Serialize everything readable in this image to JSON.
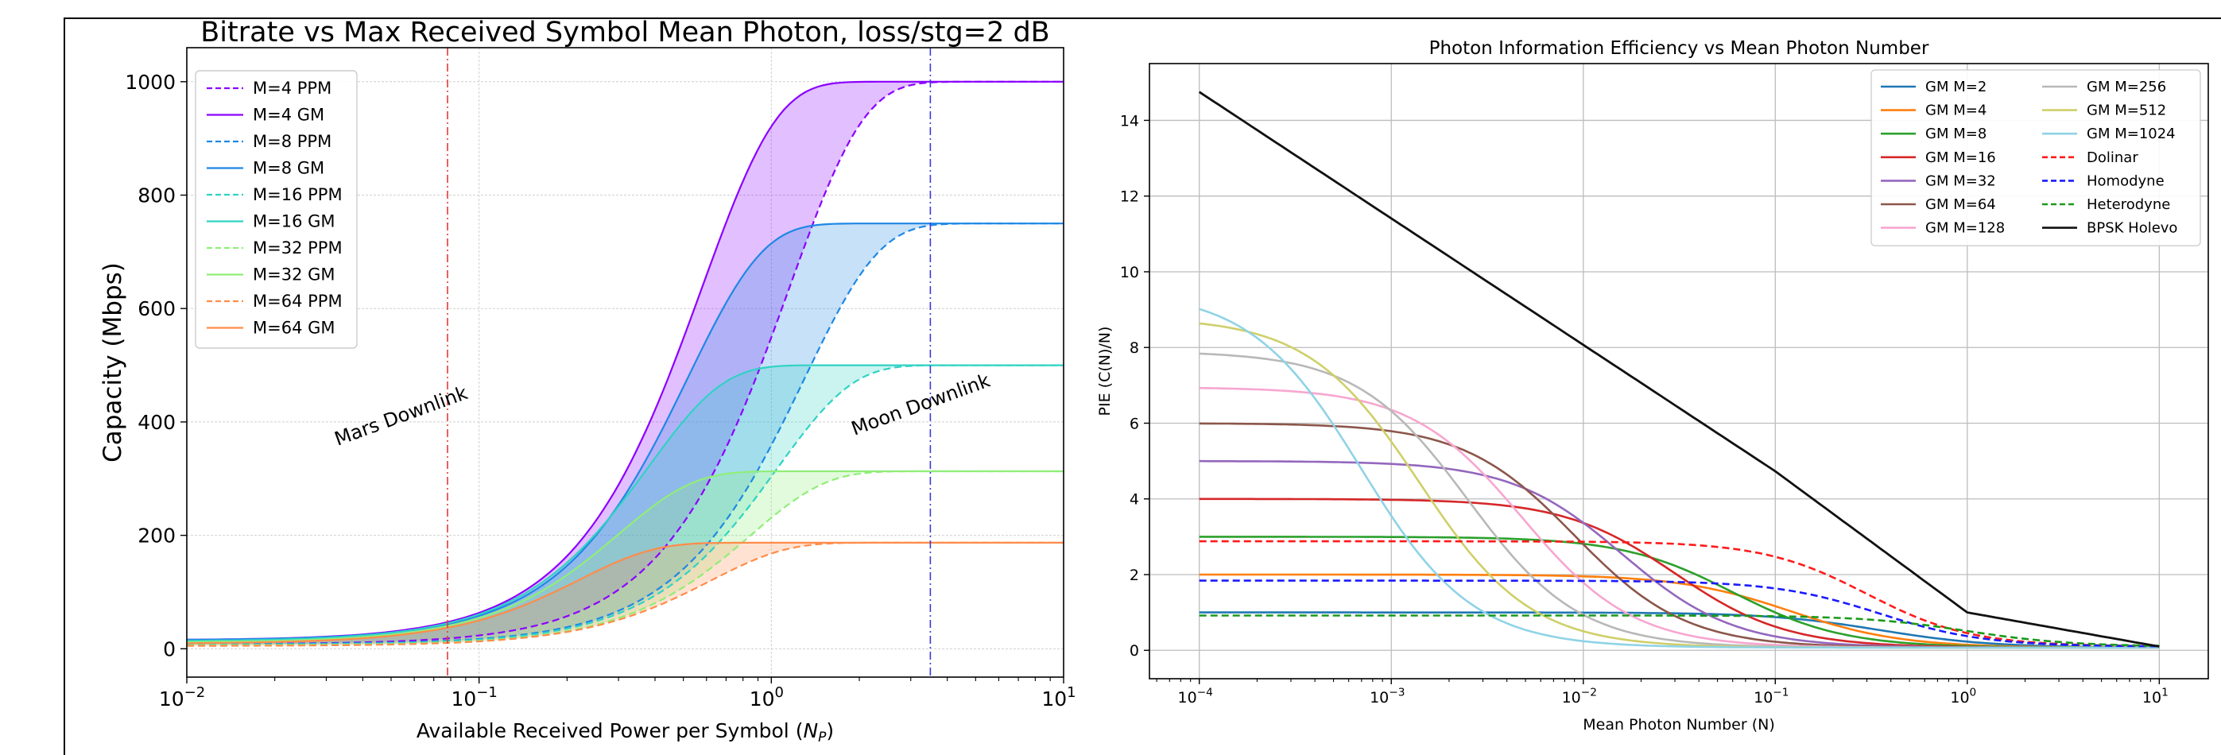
{
  "chart_data": [
    {
      "type": "line",
      "title": "Bitrate vs Max Received Symbol Mean Photon, loss/stg=2 dB",
      "xlabel": "Available Received Power per Symbol (",
      "xlabel_var": "N",
      "xlabel_sub": "P",
      "xlabel_close": ")",
      "ylabel": "Capacity (Mbps)",
      "xscale": "log",
      "xlim": [
        0.01,
        10
      ],
      "ylim": [
        -50,
        1060
      ],
      "grid": true,
      "legend_position": "upper-left",
      "x_ticks": [
        {
          "value": 0.01,
          "base": "10",
          "exp": "−2"
        },
        {
          "value": 0.1,
          "base": "10",
          "exp": "−1"
        },
        {
          "value": 1,
          "base": "10",
          "exp": "0"
        },
        {
          "value": 10,
          "base": "10",
          "exp": "1"
        }
      ],
      "y_ticks": [
        0,
        200,
        400,
        600,
        800,
        1000
      ],
      "y_tick_labels": [
        "0",
        "200",
        "400",
        "600",
        "800",
        "1000"
      ],
      "series": [
        {
          "name": "M=4 PPM",
          "M": 4,
          "scheme": "PPM",
          "style": "dashed",
          "color": "#8b00ff",
          "ymax": 1000,
          "half": 1.15,
          "floor": 8
        },
        {
          "name": "M=4 GM",
          "M": 4,
          "scheme": "GM",
          "style": "solid",
          "color": "#8b00ff",
          "ymax": 1000,
          "half": 0.58,
          "floor": 15
        },
        {
          "name": "M=8 PPM",
          "M": 8,
          "scheme": "PPM",
          "style": "dashed",
          "color": "#1e88e5",
          "ymax": 750,
          "half": 1.3,
          "floor": 8
        },
        {
          "name": "M=8 GM",
          "M": 8,
          "scheme": "GM",
          "style": "solid",
          "color": "#1e88e5",
          "ymax": 750,
          "half": 0.52,
          "floor": 15
        },
        {
          "name": "M=16 PPM",
          "M": 16,
          "scheme": "PPM",
          "style": "dashed",
          "color": "#2fd3c4",
          "ymax": 500,
          "half": 1.05,
          "floor": 7
        },
        {
          "name": "M=16 GM",
          "M": 16,
          "scheme": "GM",
          "style": "solid",
          "color": "#2fd3c4",
          "ymax": 500,
          "half": 0.38,
          "floor": 13
        },
        {
          "name": "M=32 PPM",
          "M": 32,
          "scheme": "PPM",
          "style": "dashed",
          "color": "#90ee78",
          "ymax": 313,
          "half": 0.85,
          "floor": 6
        },
        {
          "name": "M=32 GM",
          "M": 32,
          "scheme": "GM",
          "style": "solid",
          "color": "#90ee78",
          "ymax": 313,
          "half": 0.3,
          "floor": 11
        },
        {
          "name": "M=64 PPM",
          "M": 64,
          "scheme": "PPM",
          "style": "dashed",
          "color": "#ff8c4a",
          "ymax": 187,
          "half": 0.62,
          "floor": 5
        },
        {
          "name": "M=64 GM",
          "M": 64,
          "scheme": "GM",
          "style": "solid",
          "color": "#ff8c4a",
          "ymax": 187,
          "half": 0.22,
          "floor": 9
        }
      ],
      "vlines": [
        {
          "label": "Mars Downlink",
          "x": 0.078,
          "color": "#e53935",
          "style": "dashdot"
        },
        {
          "label": "Moon Downlink",
          "x": 3.5,
          "color": "#3a3ad6",
          "style": "dashdot"
        }
      ],
      "annotations": [
        {
          "text": "Mars Downlink",
          "x": 0.055,
          "y": 400,
          "rotation": -20
        },
        {
          "text": "Moon Downlink",
          "x": 3.3,
          "y": 420,
          "rotation": -20
        }
      ]
    },
    {
      "type": "line",
      "title": "Photon Information Efficiency vs Mean Photon Number",
      "xlabel": "Mean Photon Number (N)",
      "ylabel": "PIE (C(N)/N)",
      "xscale": "log",
      "xlim": [
        5.5e-05,
        18
      ],
      "ylim": [
        -0.75,
        15.5
      ],
      "grid": true,
      "legend_position": "upper-right",
      "x_ticks": [
        {
          "value": 0.0001,
          "base": "10",
          "exp": "−4"
        },
        {
          "value": 0.001,
          "base": "10",
          "exp": "−3"
        },
        {
          "value": 0.01,
          "base": "10",
          "exp": "−2"
        },
        {
          "value": 0.1,
          "base": "10",
          "exp": "−1"
        },
        {
          "value": 1,
          "base": "10",
          "exp": "0"
        },
        {
          "value": 10,
          "base": "10",
          "exp": "1"
        }
      ],
      "y_ticks": [
        0,
        2,
        4,
        6,
        8,
        10,
        12,
        14
      ],
      "y_tick_labels": [
        "0",
        "2",
        "4",
        "6",
        "8",
        "10",
        "12",
        "14"
      ],
      "x_start": 0.0001,
      "x_end": 10,
      "series": [
        {
          "name": "GM M=2",
          "kind": "gm",
          "color": "#1f77b4",
          "style": "solid",
          "plateau": 1.0,
          "knee": 0.35
        },
        {
          "name": "GM M=4",
          "kind": "gm",
          "color": "#ff7f0e",
          "style": "solid",
          "plateau": 2.0,
          "knee": 0.12
        },
        {
          "name": "GM M=8",
          "kind": "gm",
          "color": "#2ca02c",
          "style": "solid",
          "plateau": 3.0,
          "knee": 0.06
        },
        {
          "name": "GM M=16",
          "kind": "gm",
          "color": "#d62728",
          "style": "solid",
          "plateau": 4.0,
          "knee": 0.03
        },
        {
          "name": "GM M=32",
          "kind": "gm",
          "color": "#9467bd",
          "style": "solid",
          "plateau": 5.0,
          "knee": 0.016
        },
        {
          "name": "GM M=64",
          "kind": "gm",
          "color": "#8c564b",
          "style": "solid",
          "plateau": 6.0,
          "knee": 0.009
        },
        {
          "name": "GM M=128",
          "kind": "gm",
          "color": "#f7a6d0",
          "style": "solid",
          "plateau": 6.95,
          "knee": 0.0048
        },
        {
          "name": "GM M=256",
          "kind": "gm",
          "color": "#b8b8b8",
          "style": "solid",
          "plateau": 7.9,
          "knee": 0.0025
        },
        {
          "name": "GM M=512",
          "kind": "gm",
          "color": "#cfcf6a",
          "style": "solid",
          "plateau": 8.8,
          "knee": 0.0014
        },
        {
          "name": "GM M=1024",
          "kind": "gm",
          "color": "#8fd3e6",
          "style": "solid",
          "plateau": 9.5,
          "knee": 0.0007
        },
        {
          "name": "Dolinar",
          "kind": "dolinar",
          "color": "#ff1a1a",
          "style": "dashed",
          "plateau": 2.88,
          "knee": 0.3
        },
        {
          "name": "Homodyne",
          "kind": "homodyne",
          "color": "#1a1aff",
          "style": "dashed",
          "plateau": 1.84,
          "knee": 0.35
        },
        {
          "name": "Heterodyne",
          "kind": "heterodyne",
          "color": "#1a9a1a",
          "style": "dashed",
          "plateau": 0.92,
          "knee": 1.0
        },
        {
          "name": "BPSK Holevo",
          "kind": "holevo",
          "color": "#111111",
          "style": "solid"
        }
      ],
      "legend_columns": [
        [
          "GM M=2",
          "GM M=4",
          "GM M=8",
          "GM M=16",
          "GM M=32",
          "GM M=64",
          "GM M=128"
        ],
        [
          "GM M=256",
          "GM M=512",
          "GM M=1024",
          "Dolinar",
          "Homodyne",
          "Heterodyne",
          "BPSK Holevo"
        ]
      ]
    }
  ]
}
